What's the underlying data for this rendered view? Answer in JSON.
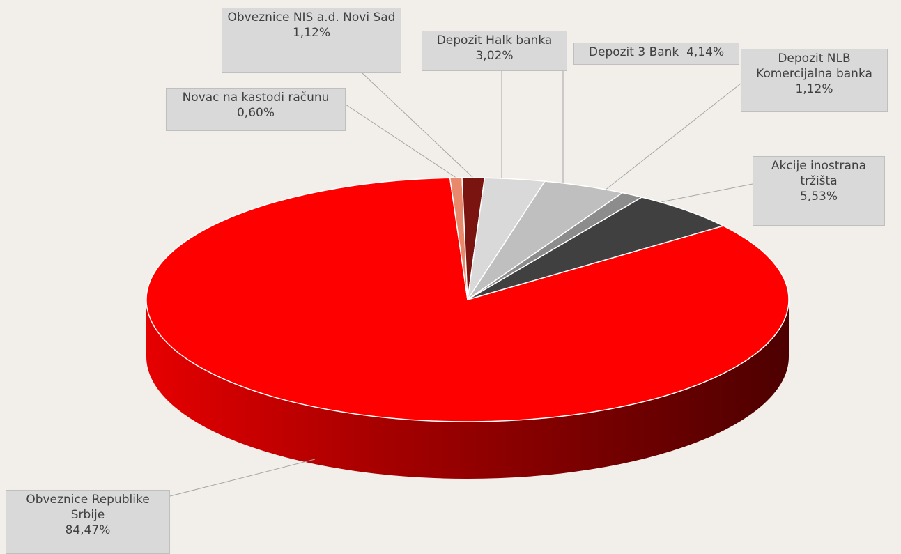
{
  "chart_data": {
    "type": "pie",
    "style": "3d",
    "title": "",
    "slices": [
      {
        "name": "Obveznice Republike Srbije",
        "label": "84,47%",
        "value": 84.47,
        "color": "#ff0000"
      },
      {
        "name": "Novac na kastodi računu",
        "label": "0,60%",
        "value": 0.6,
        "color": "#e8896b"
      },
      {
        "name": "Obveznice NIS a.d. Novi Sad",
        "label": "1,12%",
        "value": 1.12,
        "color": "#7a1410"
      },
      {
        "name": "Depozit Halk banka",
        "label": "3,02%",
        "value": 3.02,
        "color": "#d9d9d9"
      },
      {
        "name": "Depozit 3 Bank",
        "label": "4,14%",
        "value": 4.14,
        "color": "#bfbfbf"
      },
      {
        "name": "Depozit NLB Komercijalna banka",
        "label": "1,12%",
        "value": 1.12,
        "color": "#8c8c8c"
      },
      {
        "name": "Akcije inostrana tržišta",
        "label": "5,53%",
        "value": 5.53,
        "color": "#404040"
      }
    ]
  }
}
